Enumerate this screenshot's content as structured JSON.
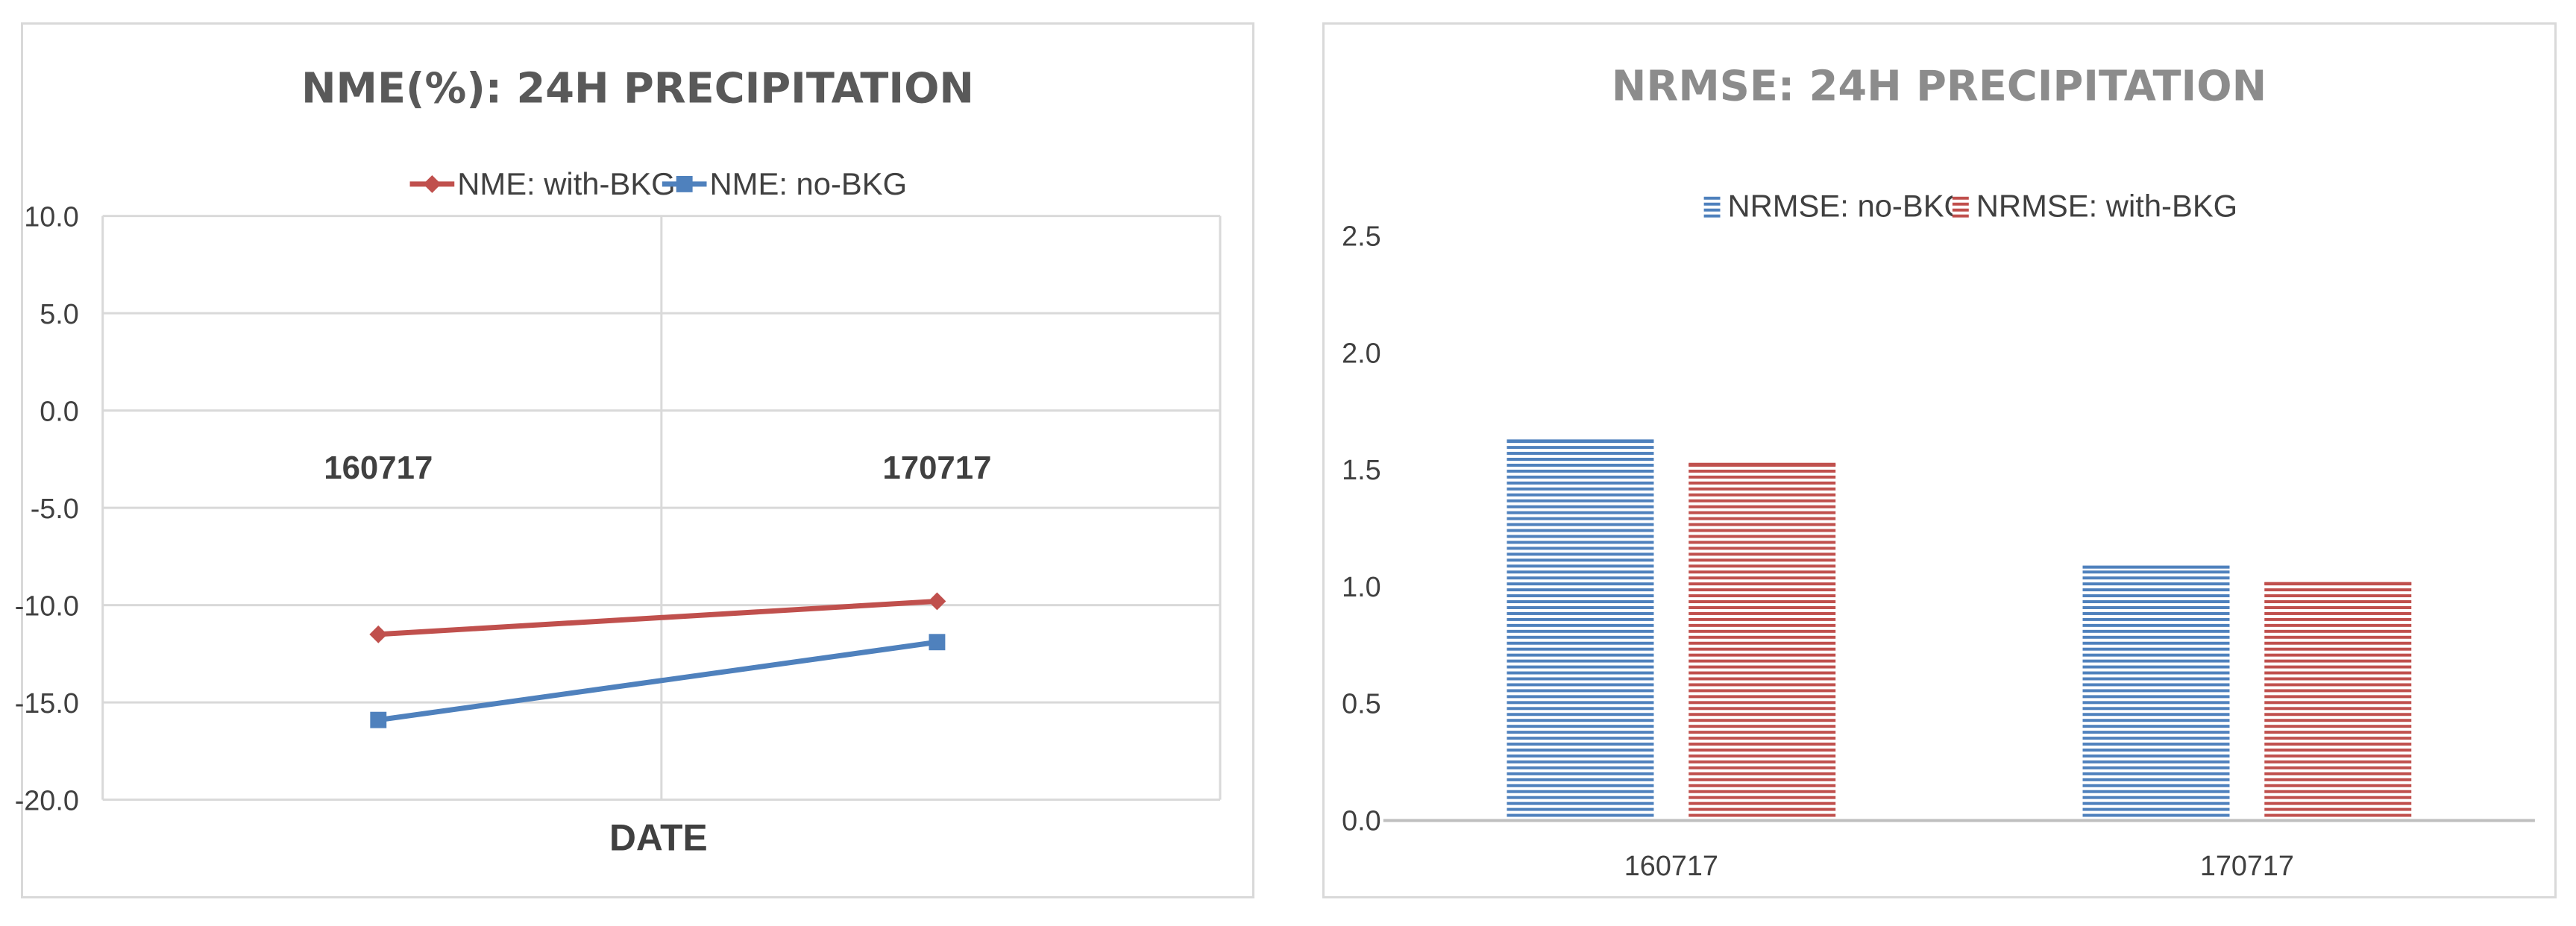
{
  "chart_data": [
    {
      "type": "line",
      "title": "NME(%): 24H PRECIPITATION",
      "xlabel": "DATE",
      "ylabel": "",
      "categories": [
        "160717",
        "170717"
      ],
      "ylim": [
        -20,
        10
      ],
      "yticks": [
        "10.0",
        "5.0",
        "0.0",
        "-5.0",
        "-10.0",
        "-15.0",
        "-20.0"
      ],
      "grid": true,
      "legend_position": "top",
      "series": [
        {
          "name": "NME: with-BKG",
          "values": [
            -11.5,
            -9.8
          ],
          "color": "#c0504d",
          "marker": "diamond"
        },
        {
          "name": "NME: no-BKG",
          "values": [
            -15.9,
            -11.9
          ],
          "color": "#4f81bd",
          "marker": "square"
        }
      ]
    },
    {
      "type": "bar",
      "title": "NRMSE: 24H PRECIPITATION",
      "xlabel": "",
      "ylabel": "",
      "categories": [
        "160717",
        "170717"
      ],
      "ylim": [
        0,
        2.5
      ],
      "yticks": [
        "2.5",
        "2.0",
        "1.5",
        "1.0",
        "0.5",
        "0.0"
      ],
      "grid": false,
      "legend_position": "top",
      "series": [
        {
          "name": "NRMSE: no-BKG",
          "values": [
            1.63,
            1.09
          ],
          "color": "#4f81bd"
        },
        {
          "name": "NRMSE: with-BKG",
          "values": [
            1.53,
            1.02
          ],
          "color": "#c0504d"
        }
      ]
    }
  ],
  "colors": {
    "title_left": "#595959",
    "title_right": "#8c8c8c",
    "axis_text": "#404040",
    "grid": "#d9d9d9"
  }
}
